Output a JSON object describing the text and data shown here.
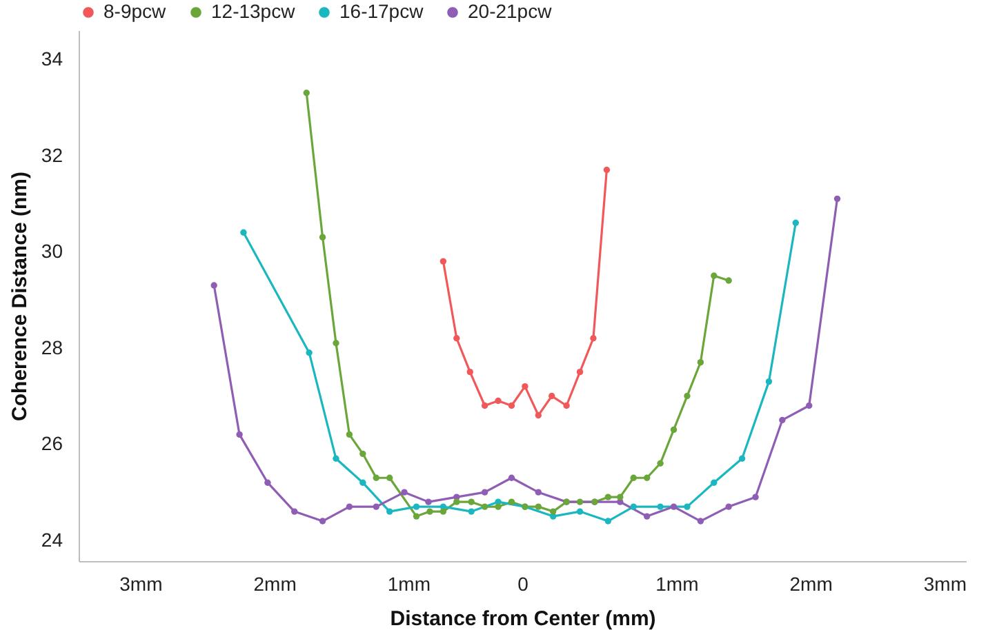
{
  "chart_data": {
    "type": "line",
    "xlabel": "Distance from Center (mm)",
    "ylabel": "Coherence Distance (nm)",
    "xlim": [
      -3.46,
      3.16
    ],
    "ylim": [
      23.57,
      34.6
    ],
    "xticks": [
      {
        "value": -3,
        "label": "3mm"
      },
      {
        "value": -2,
        "label": "2mm"
      },
      {
        "value": -1,
        "label": "1mm"
      },
      {
        "value": -0.15,
        "label": "0"
      },
      {
        "value": 1,
        "label": "1mm"
      },
      {
        "value": 2,
        "label": "2mm"
      },
      {
        "value": 3,
        "label": "3mm"
      }
    ],
    "yticks": [
      24,
      26,
      28,
      30,
      32,
      34
    ],
    "grid": false,
    "legend": "top",
    "marker": "circle",
    "line_style": "solid",
    "series": [
      {
        "name": "8-9pcw",
        "color": "#f0585a",
        "x": [
          -0.74,
          -0.64,
          -0.54,
          -0.43,
          -0.33,
          -0.23,
          -0.13,
          -0.03,
          0.07,
          0.18,
          0.28,
          0.38,
          0.48
        ],
        "values": [
          29.8,
          28.2,
          27.5,
          26.8,
          26.9,
          26.8,
          27.2,
          26.6,
          27.0,
          26.8,
          27.5,
          28.2,
          31.7
        ]
      },
      {
        "name": "12-13pcw",
        "color": "#6aa63a",
        "x": [
          -1.76,
          -1.64,
          -1.54,
          -1.44,
          -1.34,
          -1.24,
          -1.14,
          -0.94,
          -0.84,
          -0.74,
          -0.64,
          -0.53,
          -0.43,
          -0.33,
          -0.23,
          -0.13,
          -0.03,
          0.08,
          0.18,
          0.28,
          0.39,
          0.49,
          0.58,
          0.68,
          0.78,
          0.88,
          0.98,
          1.08,
          1.18,
          1.28,
          1.39
        ],
        "values": [
          33.3,
          30.3,
          28.1,
          26.2,
          25.8,
          25.3,
          25.3,
          24.5,
          24.6,
          24.6,
          24.8,
          24.8,
          24.7,
          24.7,
          24.8,
          24.7,
          24.7,
          24.6,
          24.8,
          24.8,
          24.8,
          24.9,
          24.9,
          25.3,
          25.3,
          25.6,
          26.3,
          27.0,
          27.7,
          29.5,
          29.4
        ]
      },
      {
        "name": "16-17pcw",
        "color": "#1ab7c0",
        "x": [
          -2.23,
          -1.74,
          -1.54,
          -1.34,
          -1.14,
          -0.94,
          -0.74,
          -0.53,
          -0.33,
          -0.13,
          0.08,
          0.28,
          0.49,
          0.68,
          0.88,
          1.08,
          1.28,
          1.49,
          1.69,
          1.89
        ],
        "values": [
          30.4,
          27.9,
          25.7,
          25.2,
          24.6,
          24.7,
          24.7,
          24.6,
          24.8,
          24.7,
          24.5,
          24.6,
          24.4,
          24.7,
          24.7,
          24.7,
          25.2,
          25.7,
          27.3,
          30.6
        ]
      },
      {
        "name": "20-21pcw",
        "color": "#8f5db3",
        "x": [
          -2.45,
          -2.26,
          -2.05,
          -1.85,
          -1.64,
          -1.44,
          -1.24,
          -1.03,
          -0.85,
          -0.64,
          -0.43,
          -0.23,
          -0.03,
          0.18,
          0.39,
          0.58,
          0.78,
          0.98,
          1.18,
          1.39,
          1.59,
          1.79,
          1.99,
          2.2
        ],
        "values": [
          29.3,
          26.2,
          25.2,
          24.6,
          24.4,
          24.7,
          24.7,
          25.0,
          24.8,
          24.9,
          25.0,
          25.3,
          25.0,
          24.8,
          24.8,
          24.8,
          24.5,
          24.7,
          24.4,
          24.7,
          24.9,
          26.5,
          26.8,
          31.1
        ]
      }
    ]
  }
}
